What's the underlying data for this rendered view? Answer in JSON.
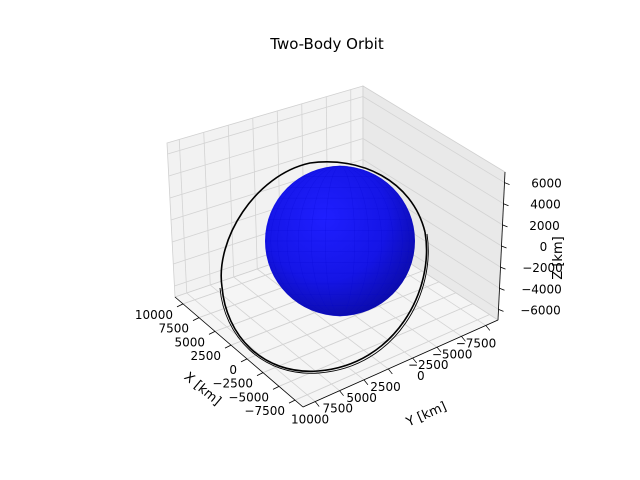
{
  "chart_data": {
    "type": "3d-line",
    "title": "Two-Body Orbit",
    "xlabel": "X [km]",
    "ylabel": "Y [km]",
    "zlabel": "Z [km]",
    "x_ticks": [
      "10000",
      "7500",
      "5000",
      "2500",
      "0",
      "−2500",
      "−5000",
      "−7500"
    ],
    "y_ticks": [
      "10000",
      "7500",
      "5000",
      "2500",
      "0",
      "−2500",
      "−5000",
      "−7500"
    ],
    "z_ticks": [
      "6000",
      "4000",
      "2000",
      "0",
      "−2000",
      "−4000",
      "−6000"
    ],
    "grid": true,
    "series": [
      {
        "kind": "surface",
        "color": "#1a1aff"
      },
      {
        "kind": "orbit",
        "color": "#000000"
      }
    ]
  }
}
